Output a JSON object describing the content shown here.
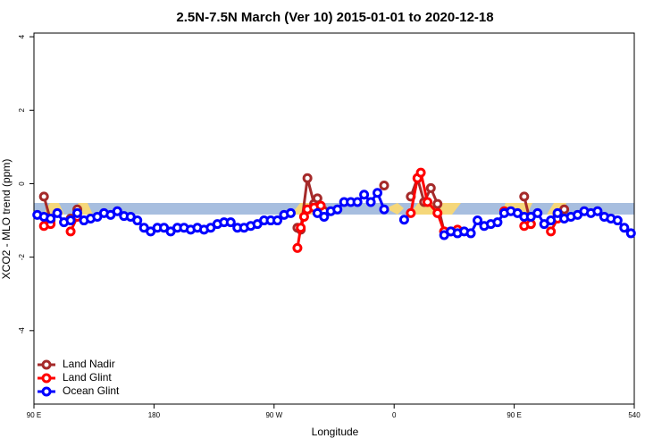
{
  "chart_data": {
    "type": "line",
    "title": "2.5N-7.5N March (Ver 10)   2015-01-01 to 2020-12-18",
    "x_label": "Longitude",
    "y_label": "XCO2 - MLO trend (ppm)",
    "xlim": [
      90,
      540
    ],
    "ylim": [
      -6,
      4.1
    ],
    "xticks": [
      {
        "value": 90,
        "label": "90 E"
      },
      180,
      {
        "value": 270,
        "label": "90 W"
      },
      {
        "value": 360,
        "label": "0"
      },
      {
        "value": 450,
        "label": "90 E"
      },
      540
    ],
    "yticks": [
      -4,
      -2,
      0,
      2,
      4
    ],
    "legend": "bottom-left",
    "series": [
      {
        "name": "Land Nadir",
        "color": "#a52a2a",
        "x": [
          97.5,
          102.5,
          110,
          117.5,
          122.5,
          130,
          287.5,
          290,
          295,
          300,
          302.5,
          307.5,
          330,
          352.5,
          360,
          372.5,
          377.5,
          382.5,
          387.5,
          392.5,
          397.5,
          430,
          457.5,
          462.5,
          470,
          482.5,
          487.5
        ],
        "values": [
          -0.35,
          -1.0,
          null,
          -0.95,
          -0.7,
          null,
          -1.2,
          -1.25,
          0.15,
          -0.55,
          -0.4,
          -0.75,
          null,
          -0.05,
          null,
          -0.35,
          0.15,
          -0.5,
          -0.12,
          -0.55,
          -1.3,
          null,
          -0.35,
          -1.1,
          null,
          -0.85,
          -0.7
        ]
      },
      {
        "name": "Land Glint",
        "color": "#ff0000",
        "x": [
          97.5,
          102.5,
          110,
          117.5,
          122.5,
          130,
          287.5,
          290,
          292.5,
          295,
          300,
          305,
          340,
          372.5,
          377.5,
          380,
          385,
          392.5,
          397.5,
          402.5,
          407.5,
          420,
          442.5,
          450,
          457.5,
          462.5,
          470,
          477.5,
          482.5
        ],
        "values": [
          -1.15,
          -1.1,
          null,
          -1.3,
          -0.9,
          null,
          -1.75,
          -1.2,
          -0.9,
          -0.7,
          -0.65,
          -0.6,
          null,
          -0.8,
          0.15,
          0.3,
          -0.5,
          -0.8,
          -1.3,
          -1.3,
          -1.25,
          null,
          -0.75,
          null,
          -1.15,
          -1.1,
          null,
          -1.3,
          -0.95
        ]
      },
      {
        "name": "Ocean Glint",
        "color": "#0000ff",
        "x": [
          92.5,
          97.5,
          102.5,
          107.5,
          112.5,
          117.5,
          122.5,
          127.5,
          132.5,
          137.5,
          142.5,
          147.5,
          152.5,
          157.5,
          162.5,
          167.5,
          172.5,
          177.5,
          182.5,
          187.5,
          192.5,
          197.5,
          202.5,
          207.5,
          212.5,
          217.5,
          222.5,
          227.5,
          232.5,
          237.5,
          242.5,
          247.5,
          252.5,
          257.5,
          262.5,
          267.5,
          272.5,
          277.5,
          282.5,
          287.5,
          302.5,
          307.5,
          312.5,
          317.5,
          322.5,
          327.5,
          332.5,
          337.5,
          342.5,
          347.5,
          352.5,
          357.5,
          367.5,
          382.5,
          397.5,
          402.5,
          407.5,
          412.5,
          417.5,
          422.5,
          427.5,
          432.5,
          437.5,
          442.5,
          447.5,
          452.5,
          457.5,
          462.5,
          467.5,
          472.5,
          477.5,
          482.5,
          487.5,
          492.5,
          497.5,
          502.5,
          507.5,
          512.5,
          517.5,
          522.5,
          527.5,
          532.5,
          537.5
        ],
        "values": [
          -0.85,
          -0.9,
          -0.95,
          -0.8,
          -1.05,
          -1.0,
          -0.8,
          -1.0,
          -0.95,
          -0.9,
          -0.8,
          -0.85,
          -0.75,
          -0.88,
          -0.9,
          -1.0,
          -1.2,
          -1.3,
          -1.2,
          -1.2,
          -1.3,
          -1.2,
          -1.2,
          -1.25,
          -1.2,
          -1.25,
          -1.2,
          -1.1,
          -1.05,
          -1.05,
          -1.2,
          -1.2,
          -1.15,
          -1.1,
          -1.0,
          -1.0,
          -1.0,
          -0.85,
          -0.8,
          null,
          -0.8,
          -0.9,
          -0.75,
          -0.7,
          -0.5,
          -0.5,
          -0.5,
          -0.3,
          -0.5,
          -0.25,
          -0.7,
          null,
          -0.98,
          null,
          -1.4,
          -1.3,
          -1.35,
          -1.3,
          -1.35,
          -1.0,
          -1.15,
          -1.1,
          -1.05,
          -0.8,
          -0.75,
          -0.8,
          -0.9,
          -0.9,
          -0.8,
          -1.1,
          -1.0,
          -0.8,
          -0.95,
          -0.9,
          -0.85,
          -0.75,
          -0.8,
          -0.75,
          -0.9,
          -0.95,
          -1.0,
          -1.2,
          -1.35
        ]
      }
    ]
  }
}
